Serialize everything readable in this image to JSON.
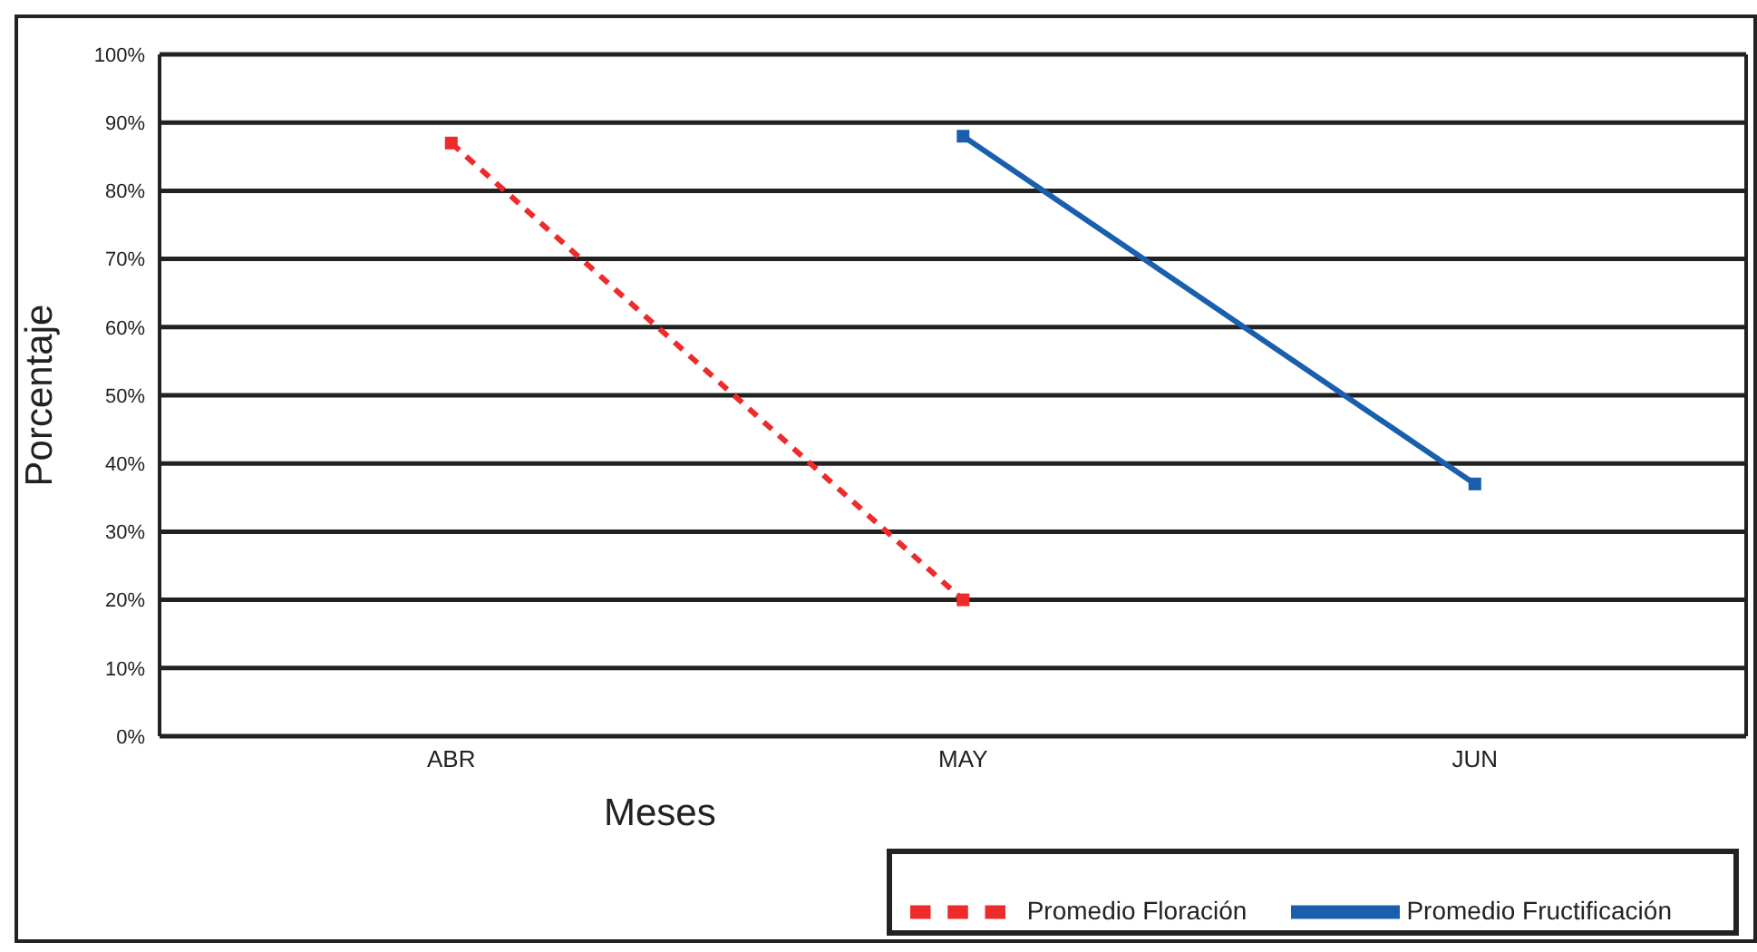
{
  "chart_data": {
    "type": "line",
    "xlabel": "Meses",
    "ylabel": "Porcentaje",
    "categories": [
      "ABR",
      "MAY",
      "JUN"
    ],
    "series": [
      {
        "name": "Promedio Floración",
        "color": "#ee2a2a",
        "values": [
          87,
          20,
          null
        ],
        "line_style": "dashed"
      },
      {
        "name": "Promedio Fructificación",
        "color": "#1a5fae",
        "values": [
          null,
          88,
          37
        ],
        "line_style": "solid"
      }
    ],
    "ylim": [
      0,
      100
    ],
    "yticks": [
      {
        "value": 0,
        "label": "0%"
      },
      {
        "value": 10,
        "label": "10%"
      },
      {
        "value": 20,
        "label": "20%"
      },
      {
        "value": 30,
        "label": "30%"
      },
      {
        "value": 40,
        "label": "40%"
      },
      {
        "value": 50,
        "label": "50%"
      },
      {
        "value": 60,
        "label": "60%"
      },
      {
        "value": 70,
        "label": "70%"
      },
      {
        "value": 80,
        "label": "80%"
      },
      {
        "value": 90,
        "label": "90%"
      },
      {
        "value": 100,
        "label": "100%"
      }
    ],
    "grid": "y",
    "legend": "bottom right",
    "marker": "square"
  }
}
